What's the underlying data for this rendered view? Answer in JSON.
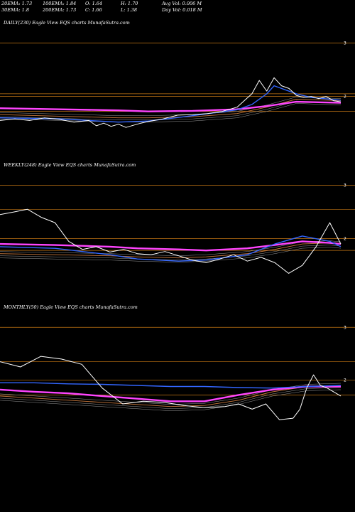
{
  "stats": {
    "row1": [
      "20EMA: 1.73",
      "100EMA: 1.84",
      "O: 1.64",
      "H: 1.70",
      "Avg Vol: 0.006  M"
    ],
    "row2": [
      "30EMA: 1.8",
      "200EMA: 1.73",
      "C: 1.66",
      "L: 1.38",
      "Day Vol: 0.018 M"
    ]
  },
  "colors": {
    "price": "#ffffff",
    "ema_blue": "#3366ff",
    "ema_pink": "#ff44ff",
    "ema_brown": "#c8783c",
    "level": "#c87814",
    "band": "#999999"
  },
  "chart_data": [
    {
      "type": "line",
      "title": "DAILY(230) Eagle  View  EQS charts MunafaSutra.com",
      "y_ticks": [
        {
          "value": 3,
          "label": "3"
        },
        {
          "value": 2,
          "label": "2"
        }
      ],
      "ylim": [
        0.85,
        3.3
      ],
      "levels": [
        3.0,
        2.05,
        2.0,
        1.72
      ],
      "series": [
        {
          "role": "price",
          "x": [
            0,
            10,
            20,
            30,
            40,
            50,
            60,
            65,
            70,
            75,
            80,
            85,
            90,
            95,
            100,
            110,
            120,
            130,
            140,
            150,
            160,
            170,
            175,
            180,
            185,
            190,
            195,
            200,
            205,
            210,
            215,
            220,
            225,
            230
          ],
          "values": [
            1.55,
            1.58,
            1.55,
            1.6,
            1.57,
            1.52,
            1.55,
            1.45,
            1.5,
            1.44,
            1.48,
            1.42,
            1.46,
            1.5,
            1.53,
            1.58,
            1.65,
            1.66,
            1.68,
            1.72,
            1.8,
            2.05,
            2.3,
            2.1,
            2.35,
            2.2,
            2.15,
            2.02,
            1.98,
            2.0,
            1.96,
            2.0,
            1.92,
            1.9
          ]
        },
        {
          "role": "ema_blue",
          "x": [
            0,
            40,
            80,
            100,
            130,
            160,
            170,
            180,
            185,
            190,
            200,
            210,
            230
          ],
          "values": [
            1.6,
            1.58,
            1.52,
            1.54,
            1.64,
            1.75,
            1.85,
            2.05,
            2.2,
            2.15,
            2.05,
            1.98,
            1.93
          ]
        },
        {
          "role": "ema_pink",
          "x": [
            0,
            40,
            80,
            100,
            130,
            160,
            180,
            200,
            230
          ],
          "values": [
            1.78,
            1.76,
            1.74,
            1.72,
            1.73,
            1.76,
            1.82,
            1.9,
            1.88
          ]
        },
        {
          "role": "ema_brown",
          "x": [
            0,
            40,
            80,
            100,
            130,
            160,
            180,
            200,
            230
          ],
          "values": [
            1.66,
            1.63,
            1.6,
            1.6,
            1.62,
            1.68,
            1.8,
            1.95,
            1.92
          ]
        }
      ]
    },
    {
      "type": "line",
      "title": "WEEKLY(248) Eagle  View  EQS charts MunafaSutra.com",
      "y_ticks": [
        {
          "value": 3,
          "label": "3"
        },
        {
          "value": 2,
          "label": "2"
        }
      ],
      "ylim": [
        0.85,
        3.3
      ],
      "levels": [
        3.0,
        2.55,
        2.0,
        1.78
      ],
      "series": [
        {
          "role": "price",
          "x": [
            0,
            10,
            20,
            30,
            40,
            50,
            60,
            70,
            80,
            90,
            100,
            110,
            120,
            130,
            140,
            150,
            160,
            170,
            180,
            190,
            200,
            210,
            220,
            230,
            240,
            248
          ],
          "values": [
            2.45,
            2.5,
            2.55,
            2.4,
            2.3,
            1.95,
            1.8,
            1.85,
            1.75,
            1.8,
            1.72,
            1.7,
            1.76,
            1.68,
            1.6,
            1.55,
            1.62,
            1.7,
            1.58,
            1.65,
            1.55,
            1.35,
            1.5,
            1.85,
            2.3,
            1.9
          ]
        },
        {
          "role": "ema_blue",
          "x": [
            0,
            40,
            80,
            100,
            130,
            150,
            180,
            200,
            220,
            240,
            248
          ],
          "values": [
            1.85,
            1.82,
            1.7,
            1.62,
            1.58,
            1.6,
            1.7,
            1.9,
            2.05,
            1.95,
            1.85
          ]
        },
        {
          "role": "ema_pink",
          "x": [
            0,
            40,
            80,
            100,
            130,
            150,
            180,
            200,
            220,
            240,
            248
          ],
          "values": [
            1.9,
            1.88,
            1.85,
            1.82,
            1.8,
            1.78,
            1.82,
            1.88,
            1.95,
            1.92,
            1.9
          ]
        },
        {
          "role": "ema_brown",
          "x": [
            0,
            40,
            80,
            100,
            130,
            150,
            180,
            200,
            220,
            240,
            248
          ],
          "values": [
            1.72,
            1.7,
            1.68,
            1.66,
            1.64,
            1.66,
            1.72,
            1.8,
            1.9,
            1.92,
            1.9
          ]
        }
      ]
    },
    {
      "type": "line",
      "title": "MONTHLY(50) Eagle  View  EQS charts MunafaSutra.com",
      "y_ticks": [
        {
          "value": 3,
          "label": "3"
        },
        {
          "value": 2,
          "label": "2"
        }
      ],
      "ylim": [
        0.85,
        3.3
      ],
      "levels": [
        3.0,
        2.35,
        2.0,
        1.72
      ],
      "series": [
        {
          "role": "price",
          "x": [
            0,
            3,
            6,
            9,
            12,
            15,
            18,
            21,
            24,
            27,
            30,
            33,
            35,
            37,
            39,
            41,
            43,
            44,
            45,
            46,
            47,
            48,
            50
          ],
          "values": [
            2.35,
            2.25,
            2.45,
            2.4,
            2.3,
            1.85,
            1.55,
            1.6,
            1.58,
            1.52,
            1.48,
            1.5,
            1.55,
            1.45,
            1.55,
            1.25,
            1.28,
            1.45,
            1.85,
            2.1,
            1.9,
            1.85,
            1.7
          ]
        },
        {
          "role": "ema_blue",
          "x": [
            0,
            5,
            10,
            15,
            20,
            25,
            30,
            35,
            40,
            45,
            50
          ],
          "values": [
            1.95,
            1.95,
            1.93,
            1.92,
            1.9,
            1.88,
            1.88,
            1.86,
            1.85,
            1.88,
            1.9
          ]
        },
        {
          "role": "ema_pink",
          "x": [
            0,
            5,
            10,
            15,
            20,
            25,
            30,
            35,
            40,
            45,
            50
          ],
          "values": [
            1.82,
            1.78,
            1.75,
            1.7,
            1.65,
            1.6,
            1.6,
            1.72,
            1.82,
            1.88,
            1.88
          ]
        },
        {
          "role": "ema_brown",
          "x": [
            0,
            5,
            10,
            15,
            20,
            25,
            30,
            35,
            40,
            45,
            50
          ],
          "values": [
            1.7,
            1.66,
            1.62,
            1.58,
            1.54,
            1.5,
            1.52,
            1.62,
            1.78,
            1.88,
            1.9
          ]
        }
      ]
    }
  ]
}
